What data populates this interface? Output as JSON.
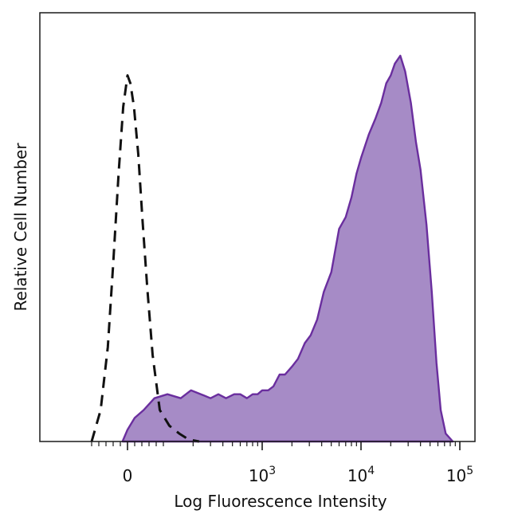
{
  "chart_data": {
    "type": "area",
    "xlabel": "Log Fluorescence Intensity",
    "ylabel": "Relative Cell Number",
    "x_scale": "biexponential",
    "xlim": [
      -200,
      200000
    ],
    "ylim": [
      0,
      1
    ],
    "grid": false,
    "legend": "none",
    "x_ticks": [
      {
        "value": 0,
        "base": "0",
        "exp": ""
      },
      {
        "value": 1000,
        "base": "10",
        "exp": "3"
      },
      {
        "value": 10000,
        "base": "10",
        "exp": "4"
      },
      {
        "value": 100000,
        "base": "10",
        "exp": "5"
      }
    ],
    "series": [
      {
        "style": "filled",
        "color": "#6a2e9e",
        "fill": "#a68bc6",
        "x": [
          -14,
          0,
          20,
          45,
          75,
          110,
          150,
          190,
          240,
          300,
          360,
          430,
          520,
          600,
          700,
          800,
          900,
          1000,
          1150,
          1300,
          1500,
          1700,
          2000,
          2300,
          2700,
          3100,
          3600,
          4200,
          5000,
          6000,
          7000,
          8000,
          9000,
          10000,
          12000,
          14000,
          16000,
          18000,
          20000,
          22000,
          25000,
          28000,
          32000,
          36000,
          40000,
          46000,
          52000,
          58000,
          64000,
          72000,
          85000
        ],
        "y": [
          0,
          0.03,
          0.06,
          0.08,
          0.11,
          0.12,
          0.11,
          0.13,
          0.12,
          0.11,
          0.12,
          0.11,
          0.12,
          0.12,
          0.11,
          0.12,
          0.12,
          0.13,
          0.13,
          0.14,
          0.17,
          0.17,
          0.19,
          0.21,
          0.25,
          0.27,
          0.31,
          0.38,
          0.43,
          0.54,
          0.57,
          0.62,
          0.68,
          0.72,
          0.78,
          0.82,
          0.86,
          0.91,
          0.93,
          0.96,
          0.98,
          0.94,
          0.86,
          0.76,
          0.69,
          0.55,
          0.38,
          0.2,
          0.08,
          0.02,
          0
        ]
      },
      {
        "style": "dashed",
        "color": "#111111",
        "x": [
          -100,
          -75,
          -55,
          -40,
          -25,
          -12,
          0,
          8,
          18,
          30,
          42,
          55,
          70,
          90,
          115,
          145,
          180,
          230
        ],
        "y": [
          0,
          0.08,
          0.24,
          0.45,
          0.68,
          0.85,
          0.93,
          0.91,
          0.85,
          0.73,
          0.56,
          0.39,
          0.22,
          0.08,
          0.04,
          0.02,
          0.005,
          0
        ]
      }
    ]
  }
}
